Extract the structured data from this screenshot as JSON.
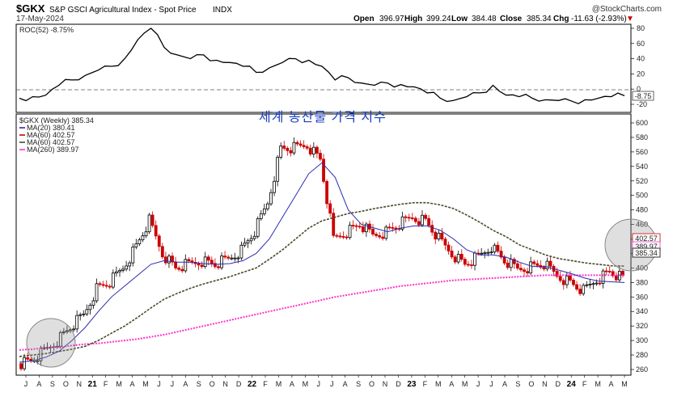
{
  "header": {
    "symbol": "$GKX",
    "description": "S&P GSCI Agricultural Index - Spot Price",
    "exchange": "INDX",
    "date": "17-May-2024",
    "source": "@StockCharts.com",
    "open_label": "Open",
    "open": "396.97",
    "high_label": "High",
    "high": "399.24",
    "low_label": "Low",
    "low": "384.48",
    "close_label": "Close",
    "close": "385.34",
    "chg_label": "Chg",
    "chg": "-11.63 (-2.93%)",
    "chg_arrow": "▼"
  },
  "roc_panel": {
    "legend": "ROC(52) -8.75%",
    "last_label": "-8.75",
    "y_ticks": [
      80,
      60,
      40,
      20,
      0,
      -20
    ]
  },
  "price_panel": {
    "annotation": "세계 농산물 가격 지수",
    "legend": [
      {
        "text": "$GKX (Weekly) 385.34",
        "color": "#000000"
      },
      {
        "text": "MA(20) 380.41",
        "color": "#2b2bb0"
      },
      {
        "text": "MA(60) 402.57",
        "color": "#cc0000"
      },
      {
        "text": "MA(60) 402.57",
        "color": "#4a4a2a"
      },
      {
        "text": "MA(260) 389.97",
        "color": "#ff33cc"
      }
    ],
    "y_ticks": [
      600,
      580,
      560,
      540,
      520,
      500,
      480,
      460,
      440,
      420,
      400,
      380,
      360,
      340,
      320,
      300,
      280,
      260
    ],
    "price_labels": [
      "402.57",
      "389.97",
      "385.34"
    ]
  },
  "x_axis": {
    "labels": [
      "J",
      "A",
      "S",
      "O",
      "N",
      "21",
      "F",
      "M",
      "A",
      "M",
      "J",
      "J",
      "A",
      "S",
      "O",
      "N",
      "D",
      "22",
      "F",
      "M",
      "A",
      "M",
      "J",
      "J",
      "A",
      "S",
      "O",
      "N",
      "D",
      "23",
      "F",
      "M",
      "A",
      "M",
      "J",
      "J",
      "A",
      "S",
      "O",
      "N",
      "D",
      "24",
      "F",
      "M",
      "A",
      "M"
    ],
    "year_labels": [
      "21",
      "22",
      "23",
      "24"
    ]
  },
  "colors": {
    "up": "#000000",
    "down": "#cc0000",
    "ma20": "#2b2bb0",
    "ma60": "#4a4a2a",
    "ma260": "#ff33cc",
    "roc": "#000000",
    "highlight_circle": "#888888"
  },
  "chart_data": {
    "type": "line",
    "title": "S&P GSCI Agricultural Index - Spot Price",
    "x": [
      "2020-07",
      "2020-08",
      "2020-09",
      "2020-10",
      "2020-11",
      "2020-12",
      "2021-01",
      "2021-02",
      "2021-03",
      "2021-04",
      "2021-05",
      "2021-06",
      "2021-07",
      "2021-08",
      "2021-09",
      "2021-10",
      "2021-11",
      "2021-12",
      "2022-01",
      "2022-02",
      "2022-03",
      "2022-04",
      "2022-05",
      "2022-06",
      "2022-07",
      "2022-08",
      "2022-09",
      "2022-10",
      "2022-11",
      "2022-12",
      "2023-01",
      "2023-02",
      "2023-03",
      "2023-04",
      "2023-05",
      "2023-06",
      "2023-07",
      "2023-08",
      "2023-09",
      "2023-10",
      "2023-11",
      "2023-12",
      "2024-01",
      "2024-02",
      "2024-03",
      "2024-04",
      "2024-05"
    ],
    "series": [
      {
        "name": "$GKX (Weekly)",
        "values": [
          268,
          272,
          285,
          300,
          318,
          335,
          372,
          380,
          400,
          430,
          465,
          420,
          400,
          405,
          410,
          405,
          412,
          425,
          450,
          490,
          565,
          565,
          570,
          550,
          440,
          450,
          460,
          445,
          450,
          460,
          470,
          465,
          440,
          420,
          405,
          415,
          430,
          410,
          398,
          402,
          405,
          390,
          380,
          368,
          384,
          395,
          385
        ]
      },
      {
        "name": "MA(20)",
        "values": [
          270,
          272,
          277,
          285,
          300,
          318,
          340,
          360,
          375,
          390,
          405,
          410,
          408,
          408,
          406,
          405,
          406,
          410,
          420,
          440,
          470,
          500,
          530,
          545,
          525,
          480,
          460,
          455,
          450,
          455,
          458,
          458,
          452,
          440,
          425,
          418,
          418,
          415,
          408,
          402,
          402,
          397,
          392,
          386,
          382,
          381,
          380
        ]
      },
      {
        "name": "MA(60)",
        "values": [
          278,
          280,
          282,
          285,
          288,
          292,
          300,
          310,
          320,
          332,
          345,
          357,
          365,
          372,
          378,
          383,
          388,
          394,
          400,
          412,
          425,
          440,
          455,
          465,
          470,
          475,
          478,
          482,
          485,
          488,
          490,
          490,
          487,
          482,
          473,
          463,
          452,
          443,
          432,
          425,
          418,
          413,
          410,
          407,
          405,
          403,
          402.57
        ]
      },
      {
        "name": "MA(260)",
        "values": [
          287,
          288,
          290,
          291,
          293,
          295,
          296,
          298,
          300,
          302,
          305,
          308,
          312,
          316,
          320,
          324,
          328,
          332,
          336,
          340,
          344,
          348,
          352,
          356,
          360,
          363,
          366,
          369,
          372,
          375,
          377,
          379,
          381,
          383,
          384,
          385,
          386,
          387,
          388,
          389,
          390,
          390,
          390,
          390,
          390,
          390,
          389.97
        ]
      }
    ],
    "roc_series": {
      "name": "ROC(52)",
      "values": [
        -12,
        -10,
        -8,
        5,
        12,
        18,
        25,
        30,
        40,
        65,
        80,
        55,
        45,
        40,
        45,
        38,
        35,
        30,
        22,
        28,
        35,
        40,
        38,
        30,
        12,
        15,
        8,
        5,
        8,
        6,
        3,
        -5,
        -12,
        -15,
        -10,
        -5,
        5,
        -8,
        -10,
        -12,
        -14,
        -15,
        -16,
        -14,
        -12,
        -10,
        -8.75
      ]
    },
    "roc_ylim": [
      -20,
      80
    ],
    "ylim": [
      250,
      600
    ],
    "ylabel": "",
    "xlabel": ""
  }
}
